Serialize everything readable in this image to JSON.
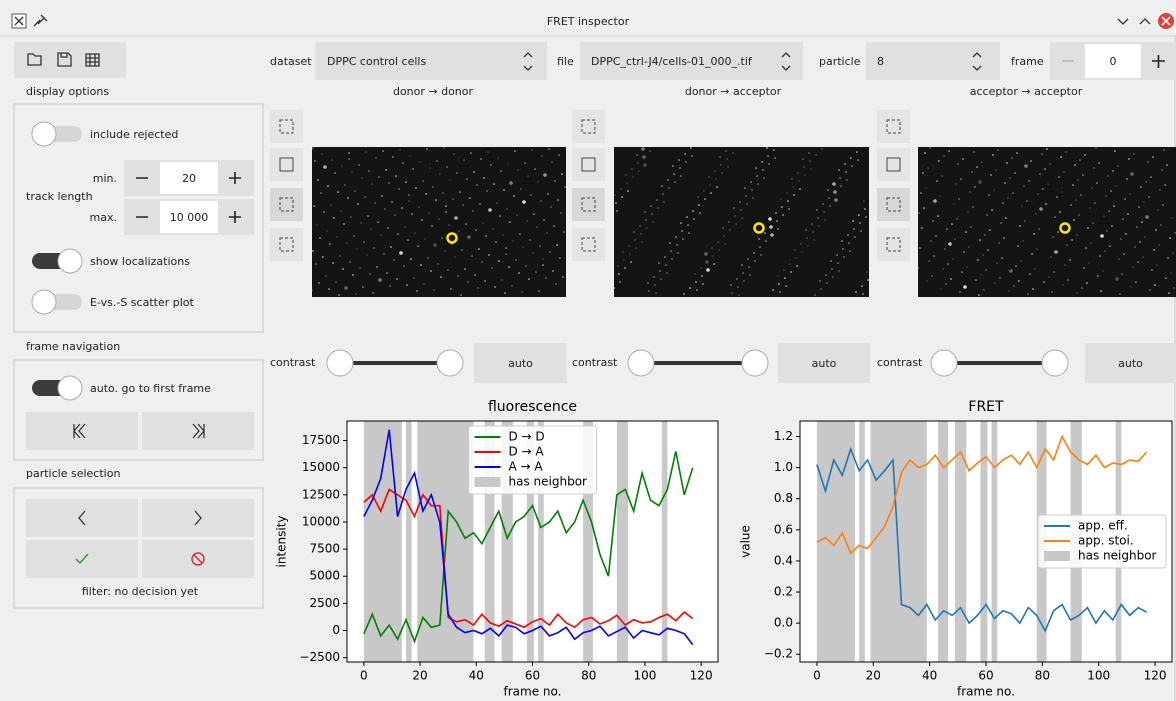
{
  "window": {
    "title": "FRET inspector"
  },
  "selectors": {
    "dataset_label": "dataset",
    "dataset": "DPPC control cells",
    "file_label": "file",
    "file": "DPPC_ctrl-J4/cells-01_000_.tif",
    "particle_label": "particle",
    "particle": "8",
    "frame_label": "frame",
    "frame": "0"
  },
  "display_options": {
    "heading": "display options",
    "include_rejected": "include rejected",
    "track_length": "track length",
    "min_label": "min.",
    "min_value": "20",
    "max_label": "max.",
    "max_value": "10 000",
    "show_localizations": "show localizations",
    "scatter_plot": "E-vs.-S scatter plot"
  },
  "frame_navigation": {
    "heading": "frame navigation",
    "auto_first": "auto. go to first frame"
  },
  "particle_selection": {
    "heading": "particle selection",
    "filter_status": "filter: no decision yet"
  },
  "channels": [
    {
      "title": "donor → donor",
      "contrast": "contrast",
      "auto": "auto"
    },
    {
      "title": "donor → acceptor",
      "contrast": "contrast",
      "auto": "auto"
    },
    {
      "title": "acceptor → acceptor",
      "contrast": "contrast",
      "auto": "auto"
    }
  ],
  "chart_data": [
    {
      "type": "line",
      "title": "fluorescence",
      "xlabel": "frame no.",
      "ylabel": "intensity",
      "legend": "upper center",
      "x": [
        0,
        3,
        6,
        9,
        12,
        15,
        18,
        21,
        24,
        27,
        30,
        33,
        36,
        39,
        42,
        45,
        48,
        51,
        54,
        57,
        60,
        63,
        66,
        69,
        72,
        75,
        78,
        81,
        84,
        87,
        90,
        93,
        96,
        99,
        102,
        105,
        108,
        111,
        114,
        117
      ],
      "series": [
        {
          "name": "D → D",
          "color": "#008000",
          "values": [
            -300,
            1500,
            -500,
            500,
            -800,
            1000,
            -1000,
            1200,
            300,
            500,
            11000,
            10000,
            8500,
            9000,
            8000,
            9500,
            11000,
            8500,
            10000,
            10500,
            11500,
            9500,
            10000,
            11000,
            9000,
            10000,
            12000,
            10000,
            7000,
            5000,
            12500,
            13000,
            11000,
            14500,
            12000,
            11500,
            13000,
            16500,
            12500,
            15000
          ]
        },
        {
          "name": "D → A",
          "color": "#ff0000",
          "values": [
            11800,
            12500,
            11000,
            13000,
            12500,
            12000,
            10500,
            12500,
            11500,
            11500,
            1200,
            800,
            1000,
            500,
            1500,
            700,
            400,
            900,
            600,
            300,
            800,
            1100,
            500,
            1500,
            700,
            300,
            1000,
            1200,
            600,
            900,
            1400,
            500,
            1000,
            700,
            800,
            1200,
            1500,
            900,
            1700,
            1100
          ]
        },
        {
          "name": "A → A",
          "color": "#0000ff",
          "values": [
            10500,
            12000,
            14000,
            18500,
            10500,
            13000,
            14500,
            11000,
            12500,
            10000,
            1500,
            300,
            -200,
            0,
            -300,
            200,
            -500,
            500,
            300,
            -300,
            0,
            400,
            -500,
            -200,
            300,
            -800,
            -200,
            0,
            400,
            -500,
            -100,
            300,
            -700,
            0,
            -200,
            -400,
            200,
            0,
            -300,
            -1300
          ]
        }
      ],
      "shaded": {
        "name": "has neighbor",
        "color": "#c8c8c8",
        "spans": [
          [
            0,
            13.5
          ],
          [
            15,
            17
          ],
          [
            19,
            39
          ],
          [
            43,
            46.5
          ],
          [
            49,
            53
          ],
          [
            58,
            60.5
          ],
          [
            62,
            64
          ],
          [
            78,
            81.5
          ],
          [
            90,
            94
          ],
          [
            106,
            108
          ]
        ]
      },
      "xlim": [
        -6,
        126
      ],
      "xticks": [
        0,
        20,
        40,
        60,
        80,
        100,
        120
      ],
      "ylim": [
        -2900,
        19300
      ],
      "yticks": [
        {
          "value": -2500,
          "label": "−2500"
        },
        0,
        2500,
        5000,
        7500,
        10000,
        12500,
        15000,
        17500
      ]
    },
    {
      "type": "line",
      "title": "FRET",
      "xlabel": "frame no.",
      "ylabel": "value",
      "legend": "center right",
      "x": [
        0,
        3,
        6,
        9,
        12,
        15,
        18,
        21,
        24,
        27,
        30,
        33,
        36,
        39,
        42,
        45,
        48,
        51,
        54,
        57,
        60,
        63,
        66,
        69,
        72,
        75,
        78,
        81,
        84,
        87,
        90,
        93,
        96,
        99,
        102,
        105,
        108,
        111,
        114,
        117
      ],
      "series": [
        {
          "name": "app. eff.",
          "color": "#1f77b4",
          "values": [
            1.02,
            0.85,
            1.05,
            0.95,
            1.12,
            0.98,
            1.05,
            0.92,
            0.98,
            1.05,
            0.12,
            0.1,
            0.05,
            0.12,
            0.02,
            0.08,
            0.05,
            0.1,
            0.0,
            0.05,
            0.12,
            0.03,
            0.08,
            0.06,
            0.0,
            0.1,
            0.05,
            -0.05,
            0.08,
            0.12,
            0.02,
            0.05,
            0.1,
            0.0,
            0.08,
            0.02,
            0.12,
            0.05,
            0.1,
            0.07
          ]
        },
        {
          "name": "app. stoi.",
          "color": "#ff7f0e",
          "values": [
            0.52,
            0.55,
            0.5,
            0.58,
            0.45,
            0.5,
            0.48,
            0.55,
            0.62,
            0.75,
            0.97,
            1.05,
            1.0,
            1.02,
            1.08,
            1.0,
            1.05,
            1.1,
            0.98,
            1.03,
            1.07,
            1.0,
            1.05,
            1.08,
            1.02,
            1.1,
            1.0,
            1.12,
            1.05,
            1.2,
            1.1,
            1.05,
            1.02,
            1.08,
            1.0,
            1.03,
            1.02,
            1.05,
            1.04,
            1.1
          ]
        }
      ],
      "shaded": {
        "name": "has neighbor",
        "color": "#c8c8c8",
        "spans": [
          [
            0,
            13.5
          ],
          [
            15,
            17
          ],
          [
            19,
            39
          ],
          [
            43,
            46.5
          ],
          [
            49,
            53
          ],
          [
            58,
            60.5
          ],
          [
            62,
            64
          ],
          [
            78,
            81.5
          ],
          [
            90,
            94
          ],
          [
            106,
            108
          ]
        ]
      },
      "xlim": [
        -6,
        126
      ],
      "xticks": [
        0,
        20,
        40,
        60,
        80,
        100,
        120
      ],
      "ylim": [
        -0.25,
        1.3
      ],
      "yticks": [
        {
          "value": -0.2,
          "label": "−0.2"
        },
        {
          "value": 0,
          "label": "0.0"
        },
        0.2,
        0.4,
        0.6,
        0.8,
        {
          "value": 1,
          "label": "1.0"
        },
        1.2
      ]
    }
  ]
}
